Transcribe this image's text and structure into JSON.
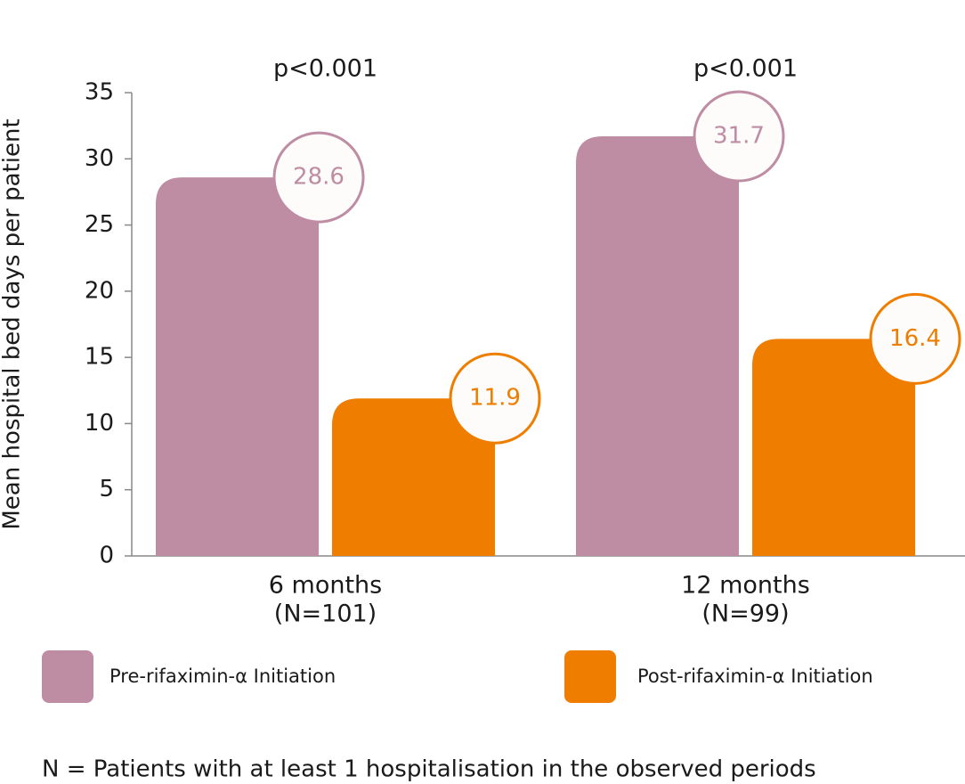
{
  "chart_data": {
    "type": "bar",
    "y_label": "Mean hospital bed days per patient",
    "categories": [
      "6 months",
      "12 months"
    ],
    "category_notes": [
      "(N=101)",
      "(N=99)"
    ],
    "annotations": [
      "p<0.001",
      "p<0.001"
    ],
    "series": [
      {
        "name": "Pre-rifaximin-α Initiation",
        "color": "#be8ca3",
        "values": [
          28.6,
          31.7
        ]
      },
      {
        "name": "Post-rifaximin-α Initiation",
        "color": "#ee7d00",
        "values": [
          11.9,
          16.4
        ]
      }
    ],
    "ylim": [
      0,
      35
    ],
    "yticks": [
      0,
      5,
      10,
      15,
      20,
      25,
      30,
      35
    ],
    "footnote": "N = Patients with at least 1 hospitalisation in the observed periods"
  }
}
